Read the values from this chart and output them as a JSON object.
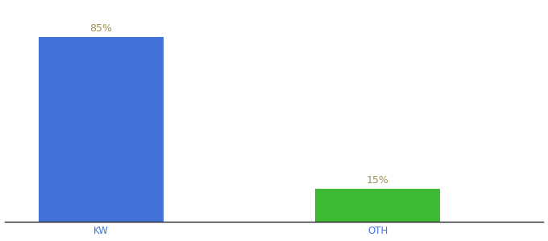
{
  "categories": [
    "KW",
    "OTH"
  ],
  "values": [
    85,
    15
  ],
  "bar_colors": [
    "#4472d9",
    "#3dbb35"
  ],
  "label_texts": [
    "85%",
    "15%"
  ],
  "label_color": "#a09050",
  "label_fontsize": 9,
  "tick_label_color": "#4472d9",
  "tick_label_fontsize": 8.5,
  "background_color": "#ffffff",
  "ylim": [
    0,
    100
  ],
  "x_positions": [
    1,
    3
  ],
  "xlim": [
    0.3,
    4.2
  ],
  "bar_width": 0.9,
  "figsize": [
    6.8,
    3.0
  ],
  "dpi": 100,
  "bottom_spine_color": "#222222",
  "bottom_spine_linewidth": 1.0
}
